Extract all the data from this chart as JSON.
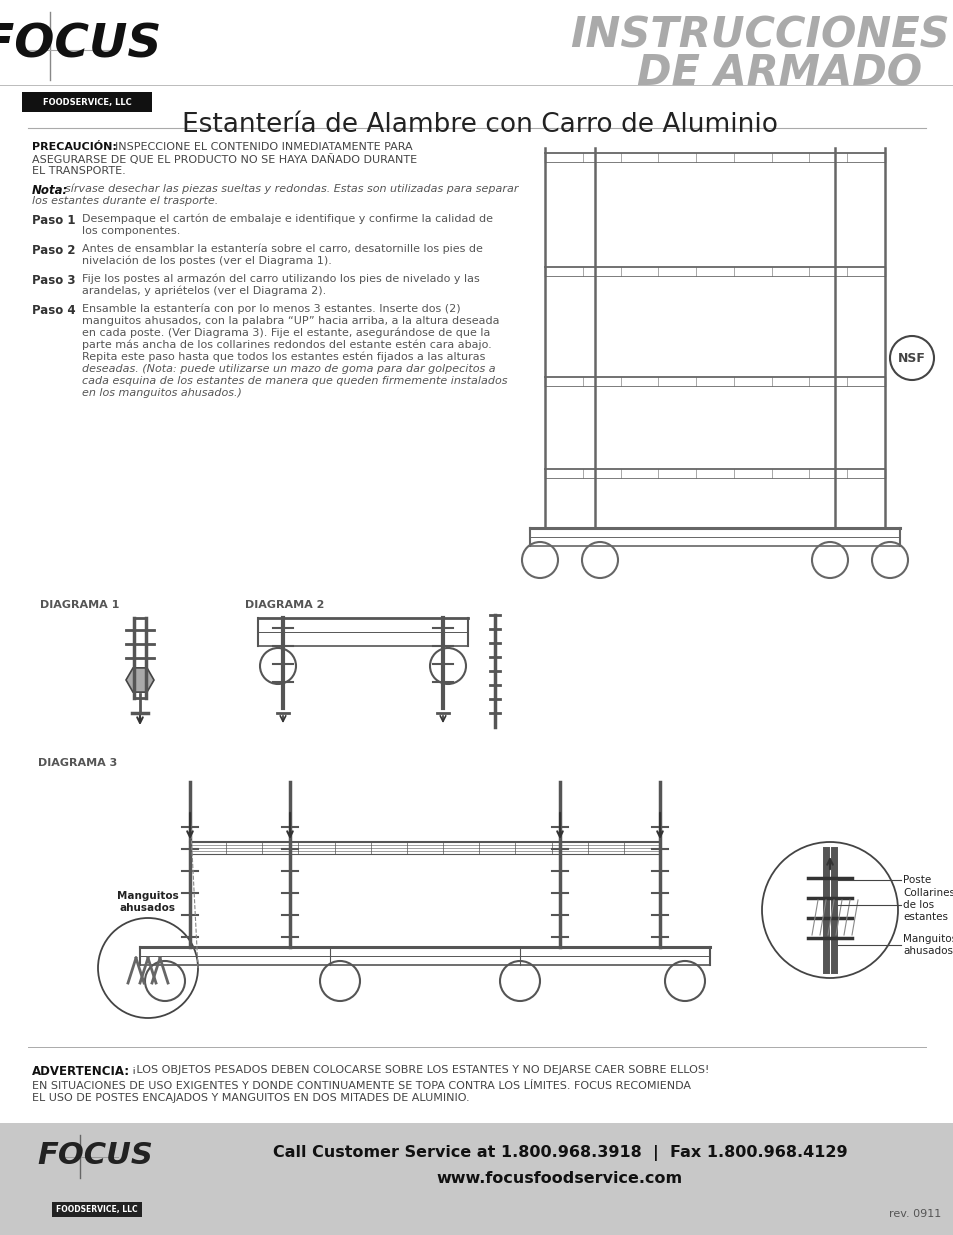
{
  "bg_color": "#ffffff",
  "footer_bg": "#c8c8c8",
  "header_title_line1": "INSTRUCCIONES",
  "header_title_line2": "DE ARMADO",
  "header_subtitle": "Estantería de Alambre con Carro de Aluminio",
  "focus_logo_text": "FOCUS",
  "foodservice_llc": "FOODSERVICE, LLC",
  "precaucion_label": "PRECAUCIÓN:",
  "nota_label": "Nota:",
  "paso1_label": "Paso 1",
  "paso2_label": "Paso 2",
  "paso3_label": "Paso 3",
  "paso4_label": "Paso 4",
  "diagrama1_label": "DIAGRAMA 1",
  "diagrama2_label": "DIAGRAMA 2",
  "diagrama3_label": "DIAGRAMA 3",
  "manguitos_label": "Manguitos\nahusados",
  "poste_label": "Poste",
  "collarines_label": "Collarines\nde los\nestantes",
  "manguitos2_label": "Manguitos\nahusados",
  "advertencia_label": "ADVERTENCIA:",
  "footer_call": "Call Customer Service at 1.800.968.3918  |  Fax 1.800.968.4129",
  "footer_web": "www.focusfoodservice.com",
  "footer_rev": "rev. 0911",
  "nsf_text": "NSF"
}
